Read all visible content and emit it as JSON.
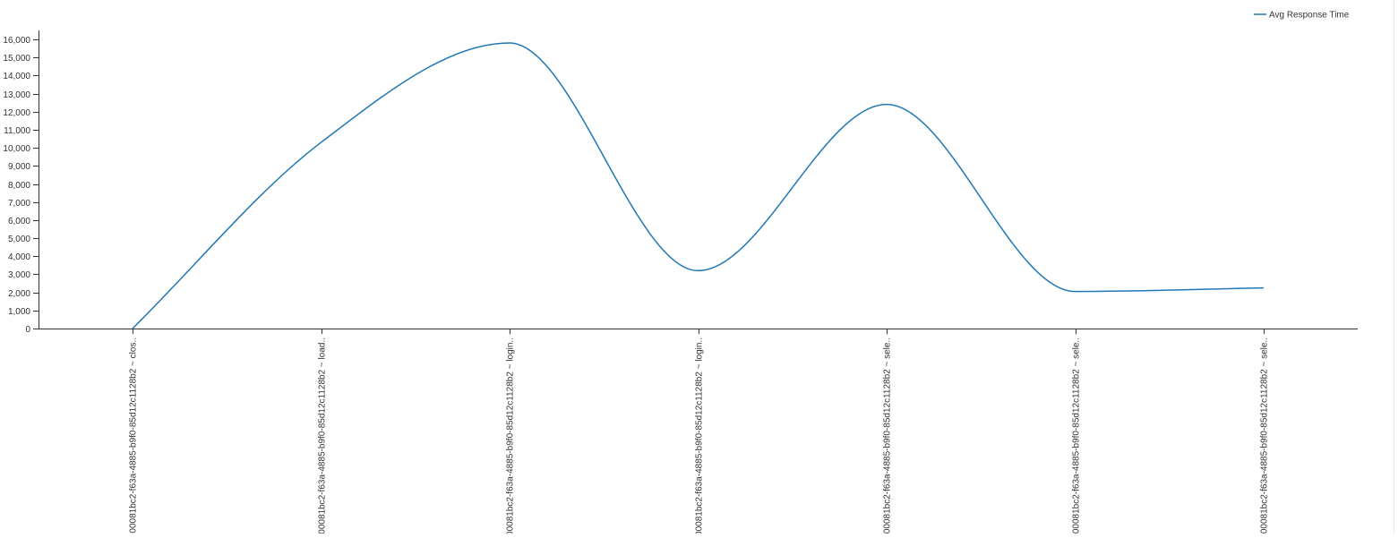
{
  "chart_data": {
    "type": "line",
    "categories": [
      "00081bc2-f63a-4885-b9f0-85d12c1128b2 ~ clos..",
      "00081bc2-f63a-4885-b9f0-85d12c1128b2 ~ load..",
      "00081bc2-f63a-4885-b9f0-85d12c1128b2 ~ login..",
      "00081bc2-f63a-4885-b9f0-85d12c1128b2 ~ login..",
      "00081bc2-f63a-4885-b9f0-85d12c1128b2 ~ sele..",
      "00081bc2-f63a-4885-b9f0-85d12c1128b2 ~ sele..",
      "00081bc2-f63a-4885-b9f0-85d12c1128b2 ~ sele.."
    ],
    "series": [
      {
        "name": "Avg Response Time",
        "color": "#1f77b4",
        "values": [
          0,
          10300,
          15800,
          3200,
          12400,
          2050,
          2250
        ]
      }
    ],
    "yticks": [
      0,
      1000,
      2000,
      3000,
      4000,
      5000,
      6000,
      7000,
      8000,
      9000,
      10000,
      11000,
      12000,
      13000,
      14000,
      15000,
      16000
    ],
    "ytick_labels": [
      "0",
      "1,000",
      "2,000",
      "3,000",
      "4,000",
      "5,000",
      "6,000",
      "7,000",
      "8,000",
      "9,000",
      "10,000",
      "11,000",
      "12,000",
      "13,000",
      "14,000",
      "15,000",
      "16,000"
    ],
    "ylim": [
      0,
      16500
    ],
    "legend_position": "top-right",
    "grid": false
  }
}
